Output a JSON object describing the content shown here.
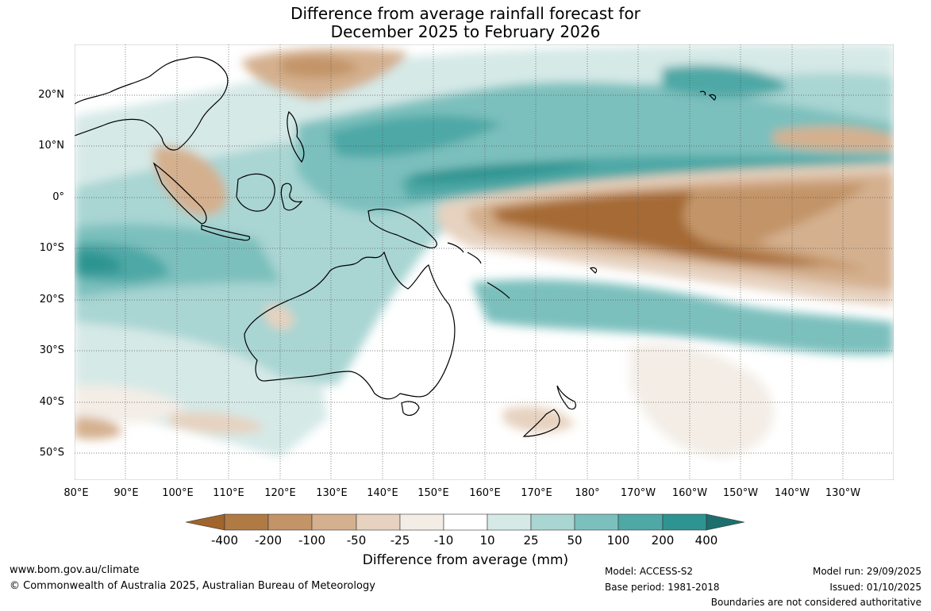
{
  "title": {
    "line1": "Difference from average rainfall forecast for",
    "line2": "December 2025 to February 2026"
  },
  "map": {
    "region": "Australia and the western and central Pacific Ocean",
    "lat_labels": [
      "20°N",
      "10°N",
      "0°",
      "10°S",
      "20°S",
      "30°S",
      "40°S",
      "50°S"
    ],
    "lon_labels": [
      "80°E",
      "90°E",
      "100°E",
      "110°E",
      "120°E",
      "130°E",
      "140°E",
      "150°E",
      "160°E",
      "170°E",
      "180°",
      "170°W",
      "160°W",
      "150°W",
      "140°W",
      "130°W"
    ]
  },
  "legend": {
    "title": "Difference from average (mm)",
    "tick_labels": [
      "-400",
      "-200",
      "-100",
      "-50",
      "-25",
      "-10",
      "10",
      "25",
      "50",
      "100",
      "200",
      "400"
    ],
    "colors": [
      "#a0642c",
      "#b07a45",
      "#c39467",
      "#d4b08f",
      "#e6d2bf",
      "#f3ede6",
      "#ffffff",
      "#d5e9e7",
      "#a9d5d3",
      "#7bc0bd",
      "#4ea8a6",
      "#2e9491",
      "#1d6f6d"
    ]
  },
  "footer": {
    "website": "www.bom.gov.au/climate",
    "copyright": "© Commonwealth of Australia 2025, Australian Bureau of Meteorology",
    "model": "Model: ACCESS-S2",
    "base_period": "Base period: 1981-2018",
    "model_run": "Model run: 29/09/2025",
    "issued": "Issued: 01/10/2025",
    "disclaimer": "Boundaries are not considered authoritative"
  }
}
